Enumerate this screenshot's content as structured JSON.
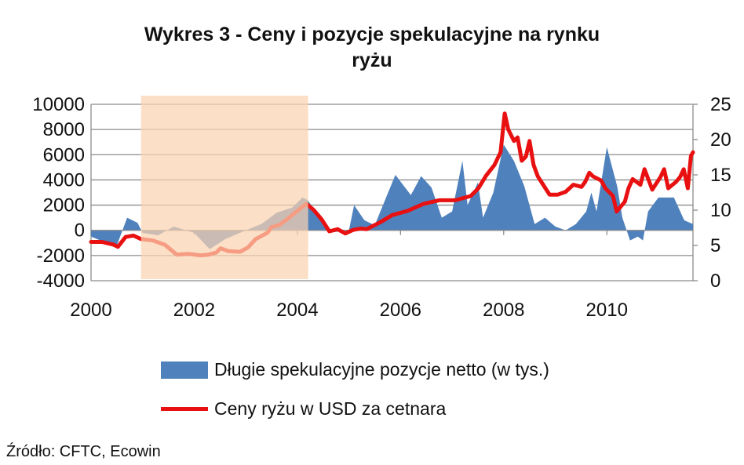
{
  "chart_data": {
    "type": "area+line",
    "title_lines": [
      "Wykres 3 - Ceny i pozycje spekulacyjne na rynku",
      "ryżu"
    ],
    "x_ticks": [
      "2000",
      "2002",
      "2004",
      "2006",
      "2008",
      "2010"
    ],
    "xlim": [
      2000,
      2011.67
    ],
    "y_left_ticks": [
      "10000",
      "8000",
      "6000",
      "4000",
      "2000",
      "0",
      "-2000",
      "-4000"
    ],
    "y_left_lim": [
      -4000,
      10000
    ],
    "y_right_ticks": [
      "25",
      "20",
      "15",
      "10",
      "5",
      "0"
    ],
    "y_right_lim": [
      0,
      25
    ],
    "grid": true,
    "highlight_period": [
      2000.97,
      2004.21
    ],
    "colors": {
      "area": "#4F81BD",
      "line": "#E81010",
      "highlight": "#FAD3B0"
    },
    "series": [
      {
        "name": "Długie spekulacyjne pozycje netto (w tys.)",
        "axis": "left",
        "type": "area",
        "x": [
          2000.0,
          2000.3,
          2000.5,
          2000.7,
          2000.9,
          2001.0,
          2001.3,
          2001.6,
          2002.0,
          2002.3,
          2002.6,
          2003.0,
          2003.3,
          2003.6,
          2003.9,
          2004.1,
          2004.2,
          2004.4,
          2004.6,
          2005.0,
          2005.1,
          2005.3,
          2005.5,
          2005.7,
          2005.9,
          2006.2,
          2006.4,
          2006.6,
          2006.8,
          2007.0,
          2007.2,
          2007.3,
          2007.5,
          2007.6,
          2007.8,
          2008.0,
          2008.2,
          2008.4,
          2008.6,
          2008.8,
          2009.0,
          2009.2,
          2009.4,
          2009.6,
          2009.7,
          2009.8,
          2010.0,
          2010.2,
          2010.3,
          2010.45,
          2010.6,
          2010.7,
          2010.8,
          2011.0,
          2011.3,
          2011.5,
          2011.67
        ],
        "values": [
          -500,
          -1000,
          -1200,
          1000,
          600,
          -200,
          -400,
          300,
          -200,
          -1500,
          -700,
          0,
          500,
          1400,
          1800,
          2600,
          2400,
          1200,
          -200,
          0,
          2000,
          800,
          400,
          2400,
          4400,
          2800,
          4300,
          3400,
          1000,
          1500,
          5500,
          2000,
          3800,
          1000,
          3000,
          6800,
          5500,
          3500,
          500,
          1000,
          300,
          0,
          500,
          1500,
          3000,
          1500,
          6600,
          3500,
          1000,
          -800,
          -500,
          -800,
          1500,
          2600,
          2600,
          800,
          500
        ]
      },
      {
        "name": "Ceny ryżu w USD za cetnara",
        "axis": "right",
        "type": "line",
        "x": [
          2000.0,
          2000.21,
          2000.44,
          2000.52,
          2000.67,
          2000.82,
          2000.97,
          2001.2,
          2001.43,
          2001.66,
          2001.89,
          2002.12,
          2002.28,
          2002.43,
          2002.51,
          2002.66,
          2002.89,
          2003.04,
          2003.19,
          2003.42,
          2003.5,
          2003.65,
          2003.8,
          2003.95,
          2004.17,
          2004.21,
          2004.32,
          2004.47,
          2004.62,
          2004.78,
          2004.93,
          2005.08,
          2005.23,
          2005.34,
          2005.61,
          2005.84,
          2006.14,
          2006.45,
          2006.75,
          2007.06,
          2007.36,
          2007.51,
          2007.66,
          2007.82,
          2007.94,
          2008.02,
          2008.09,
          2008.2,
          2008.27,
          2008.35,
          2008.43,
          2008.5,
          2008.58,
          2008.66,
          2008.73,
          2008.81,
          2008.89,
          2009.05,
          2009.2,
          2009.35,
          2009.51,
          2009.58,
          2009.66,
          2009.73,
          2009.89,
          2009.97,
          2010.12,
          2010.19,
          2010.35,
          2010.42,
          2010.5,
          2010.65,
          2010.73,
          2010.88,
          2010.96,
          2011.04,
          2011.11,
          2011.19,
          2011.34,
          2011.42,
          2011.49,
          2011.57,
          2011.63,
          2011.67
        ],
        "values": [
          5.5,
          5.5,
          5.1,
          4.8,
          6.2,
          6.4,
          5.9,
          5.7,
          5.1,
          3.7,
          3.8,
          3.6,
          3.7,
          4.0,
          4.6,
          4.2,
          4.1,
          4.7,
          5.9,
          6.8,
          7.6,
          7.9,
          8.7,
          9.6,
          10.9,
          10.7,
          10.0,
          8.7,
          7.0,
          7.3,
          6.7,
          7.2,
          7.4,
          7.3,
          8.3,
          9.3,
          9.9,
          10.9,
          11.4,
          11.4,
          12.0,
          13.1,
          14.9,
          16.4,
          18.2,
          23.7,
          21.4,
          19.8,
          20.3,
          17.0,
          17.6,
          19.8,
          16.4,
          14.8,
          14.0,
          13.1,
          12.2,
          12.2,
          12.6,
          13.6,
          13.3,
          14.0,
          15.3,
          14.8,
          14.2,
          13.1,
          12.0,
          9.8,
          11.2,
          13.1,
          14.4,
          13.6,
          15.8,
          12.9,
          13.8,
          14.7,
          15.8,
          13.1,
          14.0,
          14.7,
          15.8,
          13.1,
          17.7,
          18.2
        ]
      }
    ]
  },
  "legend": {
    "area_label": "Długie spekulacyjne pozycje netto (w tys.)",
    "line_label": "Ceny ryżu w USD za cetnara"
  },
  "source": "Źródło: CFTC, Ecowin"
}
